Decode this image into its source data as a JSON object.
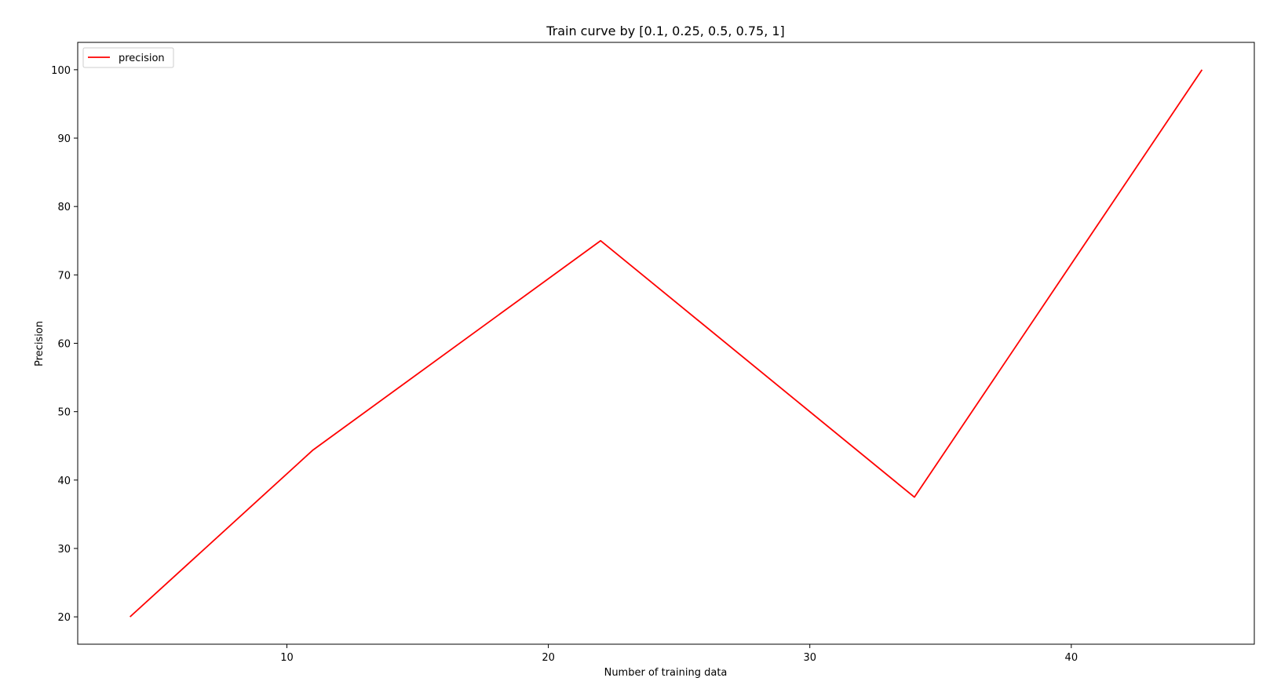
{
  "chart_data": {
    "type": "line",
    "title": "Train curve by [0.1, 0.25, 0.5, 0.75, 1]",
    "xlabel": "Number of training data",
    "ylabel": "Precision",
    "xlim": [
      2,
      47
    ],
    "ylim": [
      16,
      104
    ],
    "xticks": [
      10,
      20,
      30,
      40
    ],
    "yticks": [
      20,
      30,
      40,
      50,
      60,
      70,
      80,
      90,
      100
    ],
    "grid": false,
    "legend_position": "top-left",
    "series": [
      {
        "name": "precision",
        "color": "#ff0000",
        "x": [
          4,
          11,
          22,
          34,
          45
        ],
        "y": [
          20,
          44.4,
          75,
          37.5,
          100
        ]
      }
    ]
  }
}
